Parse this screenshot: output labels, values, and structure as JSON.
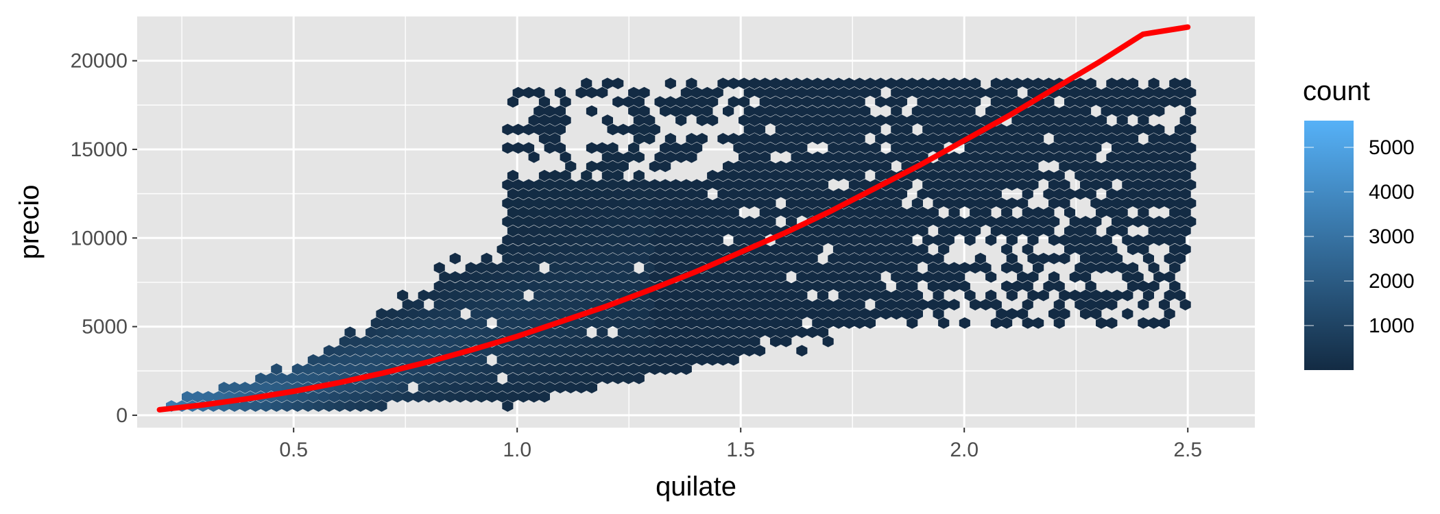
{
  "chart_data": {
    "type": "hexbin",
    "title": "",
    "xlabel": "quilate",
    "ylabel": "precio",
    "xlim": [
      0.15,
      2.65
    ],
    "ylim": [
      -700,
      22500
    ],
    "x_ticks": [
      0.5,
      1.0,
      1.5,
      2.0,
      2.5
    ],
    "x_tick_labels": [
      "0.5",
      "1.0",
      "1.5",
      "2.0",
      "2.5"
    ],
    "y_ticks": [
      0,
      5000,
      10000,
      15000,
      20000
    ],
    "y_tick_labels": [
      "0",
      "5000",
      "10000",
      "15000",
      "20000"
    ],
    "grid": true,
    "legend": {
      "title": "count",
      "position": "right",
      "range": [
        1,
        5600
      ],
      "ticks": [
        1000,
        2000,
        3000,
        4000,
        5000
      ],
      "tick_labels": [
        "1000",
        "2000",
        "3000",
        "4000",
        "5000"
      ],
      "color_low": "#132b43",
      "color_high": "#56b1f7"
    },
    "fit_line": {
      "name": "",
      "color": "#ff0000",
      "x": [
        0.2,
        0.3,
        0.4,
        0.5,
        0.6,
        0.7,
        0.8,
        0.9,
        1.0,
        1.1,
        1.2,
        1.3,
        1.4,
        1.5,
        1.6,
        1.7,
        1.8,
        1.9,
        2.0,
        2.1,
        2.2,
        2.3,
        2.4,
        2.5
      ],
      "y": [
        310,
        590,
        940,
        1350,
        1830,
        2380,
        3000,
        3700,
        4450,
        5300,
        6150,
        7100,
        8100,
        9200,
        10300,
        11500,
        12800,
        14100,
        15500,
        16900,
        18400,
        19900,
        21500,
        21900
      ]
    },
    "background_color": "#e5e5e5",
    "grid_color": "#ffffff"
  }
}
